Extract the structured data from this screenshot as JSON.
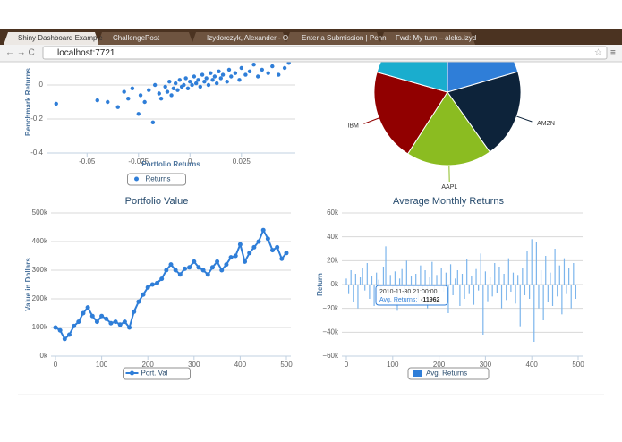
{
  "browser": {
    "tabs": [
      "Shiny Dashboard Example",
      "ChallengePost",
      "Izydorczyk, Alexander - O",
      "Enter a Submission | Penn",
      "Fwd: My turn – aleks.izyd"
    ],
    "url": "localhost:7721"
  },
  "chart_data": [
    {
      "type": "scatter",
      "x_label": "Portfolio Returns",
      "y_label": "Benchmark Returns",
      "xlim": [
        -0.0675,
        0.049
      ],
      "ylim": [
        -0.4,
        0.2
      ],
      "xticks": [
        -0.05,
        -0.025,
        0,
        0.025
      ],
      "yticks": [
        -0.4,
        -0.2,
        0,
        0.2
      ],
      "grid": true,
      "series": [
        {
          "name": "Returns",
          "color": "#2f7ed8",
          "x": [
            -0.065,
            -0.045,
            -0.04,
            -0.035,
            -0.032,
            -0.03,
            -0.028,
            -0.025,
            -0.024,
            -0.022,
            -0.02,
            -0.018,
            -0.017,
            -0.015,
            -0.014,
            -0.012,
            -0.011,
            -0.01,
            -0.009,
            -0.008,
            -0.007,
            -0.006,
            -0.005,
            -0.004,
            -0.003,
            -0.002,
            -0.001,
            0,
            0.001,
            0.002,
            0.003,
            0.004,
            0.005,
            0.006,
            0.007,
            0.008,
            0.009,
            0.01,
            0.011,
            0.012,
            0.013,
            0.014,
            0.015,
            0.016,
            0.018,
            0.019,
            0.02,
            0.022,
            0.024,
            0.025,
            0.027,
            0.029,
            0.031,
            0.033,
            0.035,
            0.038,
            0.04,
            0.043,
            0.046,
            0.048
          ],
          "values": [
            -0.11,
            -0.09,
            -0.1,
            -0.13,
            -0.04,
            -0.08,
            -0.02,
            -0.17,
            -0.06,
            -0.1,
            -0.03,
            -0.22,
            0,
            -0.05,
            -0.08,
            -0.01,
            -0.04,
            0.02,
            -0.06,
            -0.02,
            0.01,
            -0.03,
            0.03,
            -0.01,
            0,
            0.04,
            -0.02,
            0.02,
            0,
            0.05,
            0.01,
            0.03,
            -0.01,
            0.06,
            0.02,
            0.04,
            0,
            0.07,
            0.03,
            0.05,
            0.01,
            0.08,
            0.04,
            0.06,
            0.02,
            0.09,
            0.05,
            0.07,
            0.03,
            0.1,
            0.06,
            0.08,
            0.12,
            0.05,
            0.09,
            0.07,
            0.11,
            0.06,
            0.1,
            0.13
          ]
        }
      ]
    },
    {
      "type": "pie",
      "categories": [
        null,
        "AMZN",
        "AAPL",
        "IBM",
        null
      ],
      "values": [
        20.5,
        19.7,
        18.9,
        20.3,
        20.6
      ],
      "colors": [
        "#2f7ed8",
        "#0d233a",
        "#8bbc21",
        "#910000",
        "#1aadce"
      ]
    },
    {
      "type": "line",
      "title": "Portfolio Value",
      "y_label": "Value in Dollars",
      "xlim": [
        0,
        500
      ],
      "ylim": [
        0,
        500000
      ],
      "xticks": [
        0,
        100,
        200,
        300,
        400,
        500
      ],
      "yticks": [
        {
          "value": 0,
          "label": "0k"
        },
        {
          "value": 100000,
          "label": "100k"
        },
        {
          "value": 200000,
          "label": "200k"
        },
        {
          "value": 300000,
          "label": "300k"
        },
        {
          "value": 400000,
          "label": "400k"
        },
        {
          "value": 500000,
          "label": "500k"
        }
      ],
      "grid": true,
      "x": [
        0,
        10,
        20,
        30,
        40,
        50,
        60,
        70,
        80,
        90,
        100,
        110,
        120,
        130,
        140,
        150,
        160,
        170,
        180,
        190,
        200,
        210,
        220,
        230,
        240,
        250,
        260,
        270,
        280,
        290,
        300,
        310,
        320,
        330,
        340,
        350,
        360,
        370,
        380,
        390,
        400,
        410,
        420,
        430,
        440,
        450,
        460,
        470,
        480,
        490,
        500
      ],
      "series": [
        {
          "name": "Port. Val",
          "color": "#2f7ed8",
          "values": [
            100000,
            90000,
            60000,
            75000,
            105000,
            120000,
            150000,
            170000,
            140000,
            120000,
            140000,
            130000,
            115000,
            120000,
            110000,
            120000,
            100000,
            155000,
            190000,
            215000,
            240000,
            250000,
            255000,
            270000,
            300000,
            320000,
            300000,
            285000,
            305000,
            310000,
            330000,
            310000,
            300000,
            285000,
            310000,
            330000,
            300000,
            320000,
            345000,
            350000,
            390000,
            330000,
            360000,
            380000,
            400000,
            440000,
            410000,
            370000,
            380000,
            340000,
            360000
          ]
        }
      ]
    },
    {
      "type": "bar",
      "title": "Average Monthly Returns",
      "y_label": "Return",
      "xlim": [
        0,
        500
      ],
      "ylim": [
        -60000,
        60000
      ],
      "xticks": [
        0,
        100,
        200,
        300,
        400,
        500
      ],
      "yticks": [
        {
          "value": -60000,
          "label": "−60k"
        },
        {
          "value": -40000,
          "label": "−40k"
        },
        {
          "value": -20000,
          "label": "−20k"
        },
        {
          "value": 0,
          "label": "0k"
        },
        {
          "value": 20000,
          "label": "20k"
        },
        {
          "value": 40000,
          "label": "40k"
        },
        {
          "value": 60000,
          "label": "60k"
        }
      ],
      "grid": true,
      "x": [
        0,
        5,
        10,
        15,
        20,
        25,
        30,
        35,
        40,
        45,
        50,
        55,
        60,
        65,
        70,
        75,
        80,
        85,
        90,
        95,
        100,
        105,
        110,
        115,
        120,
        125,
        130,
        135,
        140,
        145,
        150,
        155,
        160,
        165,
        170,
        175,
        180,
        185,
        190,
        195,
        200,
        205,
        210,
        215,
        220,
        225,
        230,
        235,
        240,
        245,
        250,
        255,
        260,
        265,
        270,
        275,
        280,
        285,
        290,
        295,
        300,
        305,
        310,
        315,
        320,
        325,
        330,
        335,
        340,
        345,
        350,
        355,
        360,
        365,
        370,
        375,
        380,
        385,
        390,
        395,
        400,
        405,
        410,
        415,
        420,
        425,
        430,
        435,
        440,
        445,
        450,
        455,
        460,
        465,
        470,
        475,
        480,
        485,
        490,
        495
      ],
      "series": [
        {
          "name": "Avg. Returns",
          "color": "#2f7ed8",
          "values": [
            5000,
            -8000,
            12000,
            -15000,
            9000,
            -20000,
            6000,
            14000,
            -5000,
            18000,
            -12000,
            7000,
            -18000,
            10000,
            4000,
            -9000,
            15000,
            32000,
            -14000,
            8000,
            -6000,
            11000,
            -22000,
            5000,
            13000,
            -10000,
            20000,
            -16000,
            7000,
            -4000,
            9000,
            -13000,
            16000,
            -7000,
            12000,
            -20000,
            6000,
            19000,
            -11000,
            8000,
            -15000,
            14000,
            -6000,
            10000,
            -24000,
            17000,
            -9000,
            5000,
            12000,
            -18000,
            9000,
            -12000,
            21000,
            -8000,
            7000,
            -17000,
            13000,
            -5000,
            26000,
            -42000,
            11000,
            -14000,
            6000,
            -10000,
            18000,
            -7000,
            15000,
            -20000,
            9000,
            -13000,
            22000,
            -6000,
            10000,
            -16000,
            8000,
            -35000,
            14000,
            -9000,
            28000,
            -12000,
            38000,
            -48000,
            36000,
            -20000,
            12000,
            -30000,
            24000,
            -15000,
            10000,
            -18000,
            30000,
            -10000,
            16000,
            -25000,
            22000,
            -8000,
            14000,
            -20000,
            18000,
            -12000
          ]
        }
      ],
      "tooltip": {
        "title": "2010-11-30 21:00:00",
        "label": "Avg. Returns:",
        "value": -11962
      }
    }
  ]
}
